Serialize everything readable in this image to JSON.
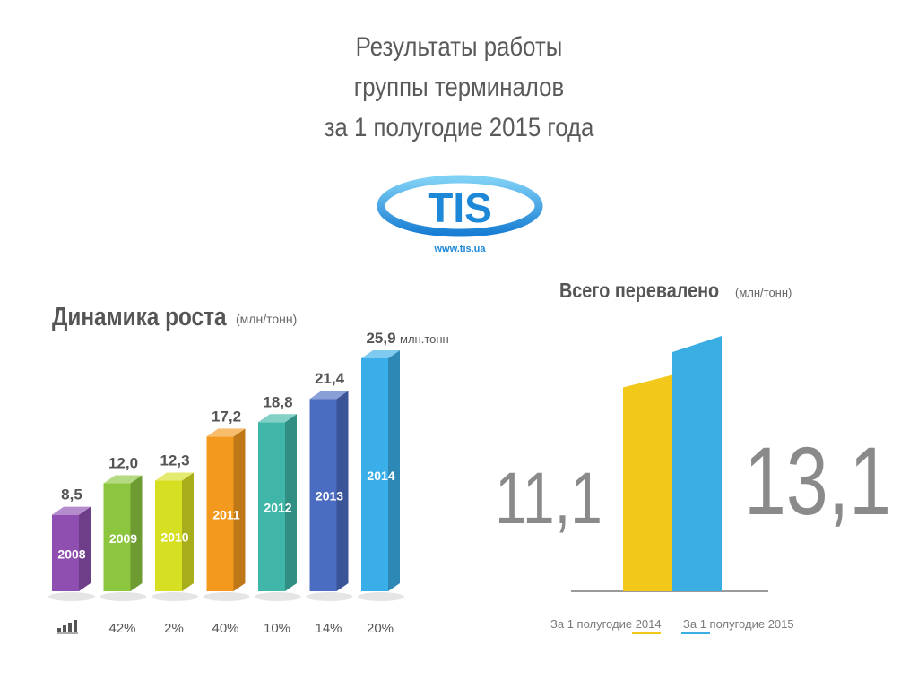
{
  "title": {
    "line1": "Результаты работы",
    "line2": "группы терминалов",
    "line3": "за 1 полугодие 2015 года"
  },
  "logo": {
    "text": "TIS",
    "url": "www.tis.ua",
    "colors": {
      "primary": "#1e88d8",
      "light": "#6fc4ee"
    }
  },
  "growth_chart": {
    "heading": "Динамика роста",
    "unit": "(млн/тонн)",
    "growth_icon": "growth-chart-icon"
  },
  "total_chart": {
    "heading": "Всего перевалено",
    "unit": "(млн/тонн)"
  },
  "chart_data": [
    {
      "type": "bar",
      "title": "Динамика роста (млн/тонн)",
      "categories": [
        "2008",
        "2009",
        "2010",
        "2011",
        "2012",
        "2013",
        "2014"
      ],
      "values": [
        8.5,
        12.0,
        12.3,
        17.2,
        18.8,
        21.4,
        25.9
      ],
      "value_labels": [
        "8,5",
        "12,0",
        "12,3",
        "17,2",
        "18,8",
        "21,4",
        "25,9"
      ],
      "last_value_unit": "млн.тонн",
      "growth_labels": [
        "",
        "42%",
        "2%",
        "40%",
        "10%",
        "14%",
        "20%"
      ],
      "colors": [
        "#8e4fb0",
        "#8cc63f",
        "#d7df23",
        "#f39a1e",
        "#3fb6a8",
        "#4a6cc1",
        "#3aaee8"
      ],
      "ylim": [
        0,
        28
      ],
      "grid": false
    },
    {
      "type": "bar",
      "title": "Всего перевалено (млн/тонн)",
      "categories": [
        "За 1 полугодие 2014",
        "За 1 полугодие 2015"
      ],
      "values": [
        11.1,
        13.1
      ],
      "value_labels": [
        "11,1",
        "13,1"
      ],
      "colors": [
        "#f2c81a",
        "#3aaee2"
      ],
      "ylim": [
        0,
        15
      ],
      "grid": false,
      "legend": "bottom"
    }
  ]
}
